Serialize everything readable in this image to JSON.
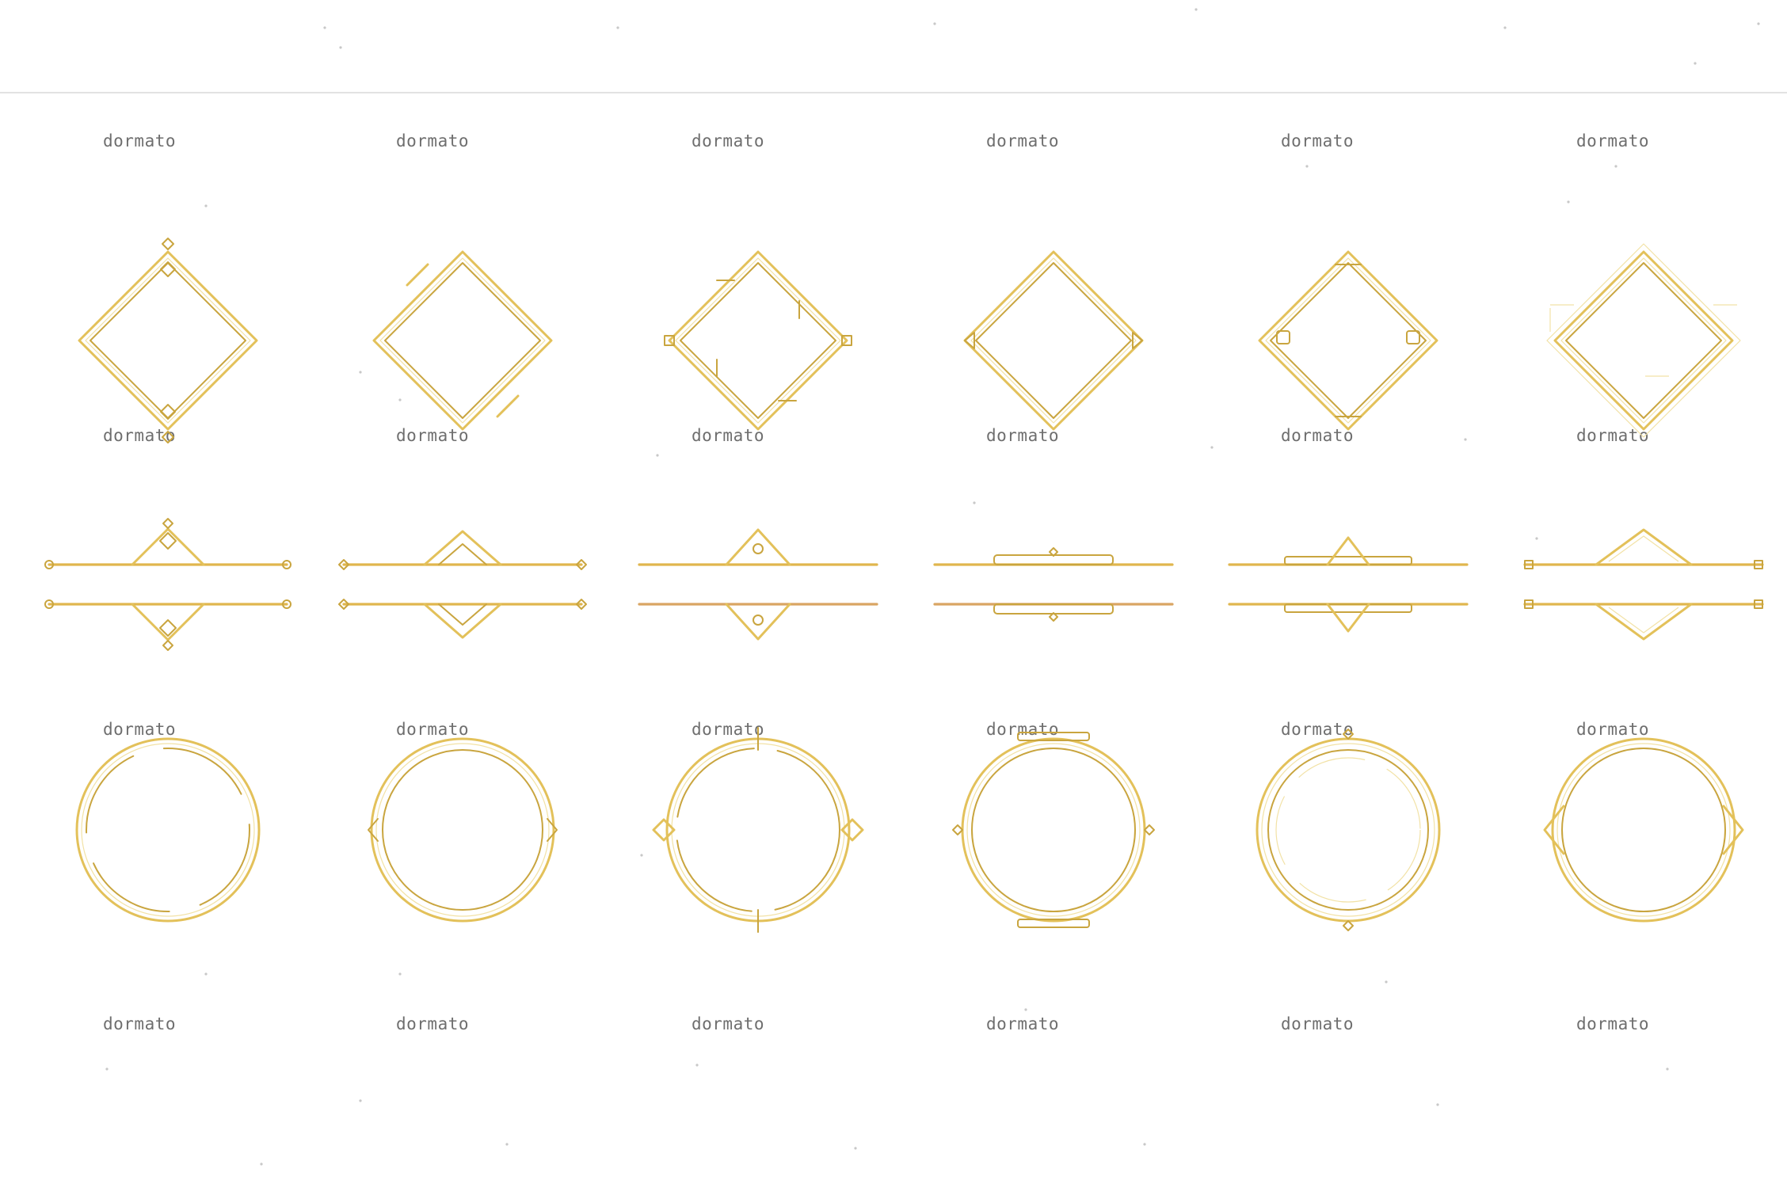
{
  "watermark": {
    "text": "dormato",
    "rows": 4,
    "per_row": 6
  },
  "colors": {
    "background": "#ffffff",
    "gold": "#e3c15a",
    "gold_dark": "#c9a53f",
    "gold_highlight": "#f2e2a6",
    "copper": "#d9a563",
    "watermark_text": "#6e6e6e",
    "watermark_line": "#d9d9d9"
  },
  "frames": {
    "diamonds": [
      {
        "variant": "diamond-frame-1",
        "ornament": "top-bottom-knots"
      },
      {
        "variant": "diamond-frame-2",
        "ornament": "corner-bars"
      },
      {
        "variant": "diamond-frame-3",
        "ornament": "square-corners"
      },
      {
        "variant": "diamond-frame-4",
        "ornament": "side-tabs"
      },
      {
        "variant": "diamond-frame-5",
        "ornament": "small-squares"
      },
      {
        "variant": "diamond-frame-6",
        "ornament": "offset-double"
      }
    ],
    "dividers": [
      {
        "variant": "divider-pair-1",
        "ornament": "diamond-knot"
      },
      {
        "variant": "divider-pair-2",
        "ornament": "nested-diamond"
      },
      {
        "variant": "divider-pair-3",
        "ornament": "triangle-pendant"
      },
      {
        "variant": "divider-pair-4",
        "ornament": "flat-plaque"
      },
      {
        "variant": "divider-pair-5",
        "ornament": "triangle-plaque"
      },
      {
        "variant": "divider-pair-6",
        "ornament": "chevron"
      }
    ],
    "circles": [
      {
        "variant": "circle-frame-1",
        "ornament": "notched"
      },
      {
        "variant": "circle-frame-2",
        "ornament": "double-ring"
      },
      {
        "variant": "circle-frame-3",
        "ornament": "side-diamonds"
      },
      {
        "variant": "circle-frame-4",
        "ornament": "top-bottom-plaques"
      },
      {
        "variant": "circle-frame-5",
        "ornament": "triple-ring"
      },
      {
        "variant": "circle-frame-6",
        "ornament": "side-arrows"
      }
    ]
  }
}
